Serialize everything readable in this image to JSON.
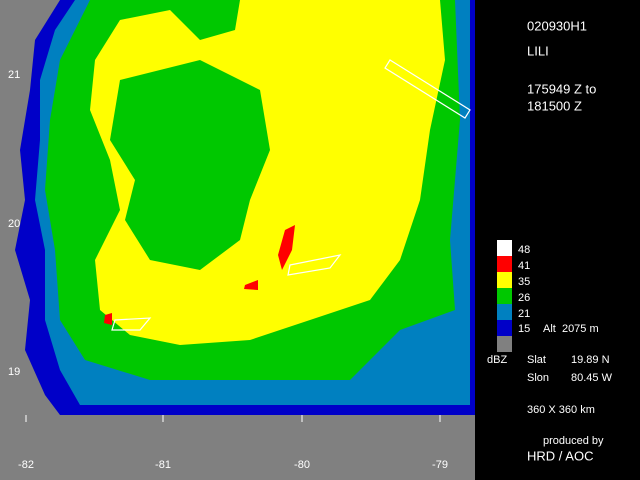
{
  "header": {
    "flight": "020930H1",
    "storm": "LILI",
    "time_start": "175949 Z to",
    "time_end": "181500 Z"
  },
  "legend": {
    "levels": [
      "48",
      "41",
      "35",
      "26",
      "21",
      "15"
    ],
    "unit": "dBZ",
    "altitude": "Alt  2075 m"
  },
  "center": {
    "lat_label": "Slat",
    "lat": "19.89 N",
    "lon_label": "Slon",
    "lon": "80.45 W"
  },
  "domain": "360 X 360 km",
  "credit": {
    "line1": "produced by",
    "line2": "HRD / AOC"
  },
  "axes": {
    "lon": [
      "-82",
      "-81",
      "-80",
      "-79"
    ],
    "lat": [
      "21",
      "20",
      "19"
    ]
  }
}
